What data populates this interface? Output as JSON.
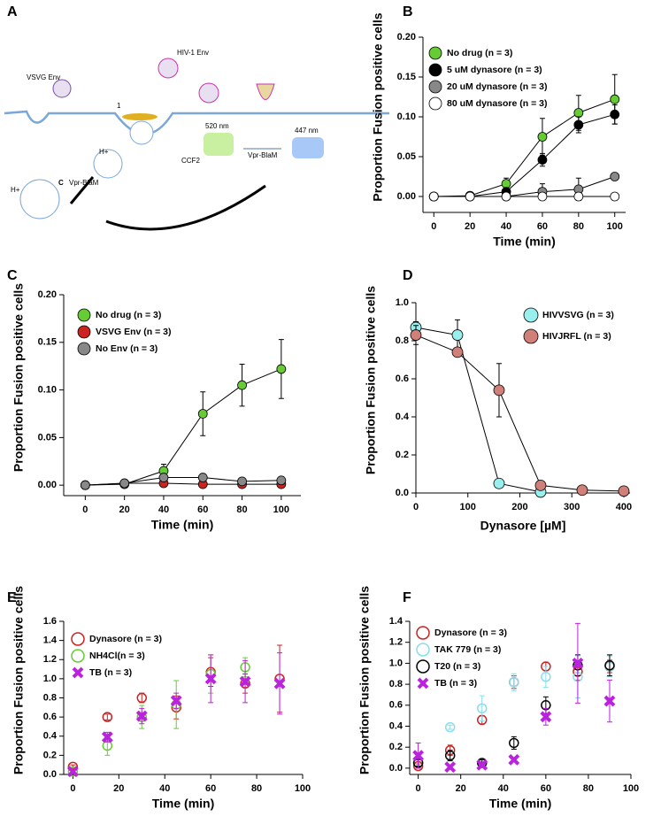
{
  "diagram": {
    "panel": "A",
    "vsvg": "VSVG Env",
    "hiv": "HIV-1 Env",
    "step": "1",
    "green": "520 nm",
    "blue": "447 nm",
    "ccf2": "CCF2",
    "blam1": "Vpr-BlaM",
    "h1": "H+",
    "h2": "H+",
    "c": "C",
    "blam2": "Vpr-BlaM"
  },
  "chart_data": [
    {
      "type": "line",
      "panel": "B",
      "xlabel": "Time (min)",
      "ylabel": "Proportion Fusion positive cells",
      "x": [
        0,
        20,
        40,
        60,
        80,
        100
      ],
      "xlim": [
        -6,
        106
      ],
      "xticks": [
        0,
        20,
        40,
        60,
        80,
        100
      ],
      "ylim": [
        -0.02,
        0.2
      ],
      "yticks": [
        {
          "value": 0,
          "label": "0.00"
        },
        0.05,
        {
          "value": 0.1,
          "label": "0.10"
        },
        0.15,
        {
          "value": 0.2,
          "label": "0.20"
        }
      ],
      "marker": "filled",
      "legend": "upper left",
      "series": [
        {
          "name": "No drug (n = 3)",
          "color": "#66cc33",
          "values": [
            0,
            0.001,
            0.016,
            0.075,
            0.105,
            0.122
          ],
          "errors": [
            0,
            0.001,
            0.007,
            0.023,
            0.022,
            0.031
          ]
        },
        {
          "name": "5 uM dynasore (n = 3)",
          "color": "#000000",
          "values": [
            0,
            0,
            0.006,
            0.046,
            0.09,
            0.103
          ],
          "errors": [
            0,
            0,
            0.004,
            0.008,
            0.01,
            0.012
          ]
        },
        {
          "name": "20 uM dynasore (n = 3)",
          "color": "#888888",
          "values": [
            0,
            0,
            0,
            0.006,
            0.009,
            0.025
          ],
          "errors": [
            0,
            0,
            0.002,
            0.01,
            0.014,
            0.003
          ]
        },
        {
          "name": "80 uM dynasore (n = 3)",
          "color": "#ffffff",
          "values": [
            0,
            0,
            0,
            0,
            0,
            0
          ],
          "errors": [
            0,
            0,
            0,
            0,
            0,
            0
          ]
        }
      ]
    },
    {
      "type": "line",
      "panel": "C",
      "xlabel": "Time (min)",
      "ylabel": "Proportion Fusion positive cells",
      "x": [
        0,
        20,
        40,
        60,
        80,
        100
      ],
      "xlim": [
        -11,
        110
      ],
      "xticks": [
        0,
        20,
        40,
        60,
        80,
        100
      ],
      "ylim": [
        -0.011,
        0.2
      ],
      "yticks": [
        {
          "value": 0,
          "label": "0.00"
        },
        0.05,
        {
          "value": 0.1,
          "label": "0.10"
        },
        0.15,
        {
          "value": 0.2,
          "label": "0.20"
        }
      ],
      "marker": "filled",
      "legend": "upper left",
      "series": [
        {
          "name": "No drug (n = 3)",
          "color": "#66cc33",
          "values": [
            0,
            0.001,
            0.015,
            0.075,
            0.105,
            0.122
          ],
          "errors": [
            0,
            0.001,
            0.007,
            0.023,
            0.022,
            0.031
          ]
        },
        {
          "name": "VSVG Env (n = 3)",
          "color": "#cc2222",
          "values": [
            0,
            0.002,
            0.002,
            0.001,
            0.001,
            0.001
          ],
          "errors": [
            0,
            0.001,
            0.001,
            0.001,
            0.001,
            0.001
          ]
        },
        {
          "name": "No Env (n = 3)",
          "color": "#888888",
          "values": [
            0,
            0.002,
            0.008,
            0.008,
            0.004,
            0.005
          ],
          "errors": [
            0,
            0.001,
            0.003,
            0.002,
            0.002,
            0.002
          ]
        }
      ]
    },
    {
      "type": "line",
      "panel": "D",
      "xlabel": "Dynasore [µM]",
      "ylabel": "Proportion Fusion positive cells",
      "x": [
        0,
        80,
        160,
        240,
        320,
        400
      ],
      "xlim": [
        0,
        412
      ],
      "xticks": [
        0,
        100,
        200,
        300,
        400
      ],
      "ylim": [
        0,
        1
      ],
      "yticks": [
        {
          "value": 0,
          "label": "0.0"
        },
        0.2,
        0.4,
        0.6,
        0.8,
        {
          "value": 1,
          "label": "1.0"
        }
      ],
      "marker": "filled",
      "legend": "upper right",
      "series": [
        {
          "name": "HIVVSVG (n = 3)",
          "color": "#99eeee",
          "values": [
            0.87,
            0.83,
            0.05,
            0.005,
            null,
            null
          ],
          "errors": [
            0.03,
            0.08,
            0.01,
            0.01,
            null,
            null
          ]
        },
        {
          "name": "HIVJRFL (n = 3)",
          "color": "#d08078",
          "values": [
            0.83,
            0.74,
            0.54,
            0.04,
            0.015,
            0.01
          ],
          "errors": [
            0.05,
            0.02,
            0.14,
            0.02,
            0.01,
            0.01
          ]
        }
      ]
    },
    {
      "type": "scatter",
      "panel": "E",
      "xlabel": "Time (min)",
      "ylabel": "Proportion Fusion positive cells",
      "x": [
        0,
        15,
        30,
        45,
        60,
        75,
        90
      ],
      "xlim": [
        -4,
        100
      ],
      "xticks": [
        0,
        20,
        40,
        60,
        80,
        100
      ],
      "ylim": [
        0,
        1.6
      ],
      "yticks": [
        {
          "value": 0,
          "label": "0.0"
        },
        0.2,
        0.4,
        0.6,
        0.8,
        {
          "value": 1,
          "label": "1.0"
        },
        1.2,
        1.4,
        1.6
      ],
      "legend": "upper left",
      "series": [
        {
          "name": "Dynasore (n = 3)",
          "color": "#cc2222",
          "marker": "open",
          "values": [
            0.08,
            0.6,
            0.8,
            0.7,
            1.07,
            0.95,
            1.0
          ],
          "errors": [
            0.02,
            0.03,
            0.05,
            0.12,
            0.15,
            0.1,
            0.35
          ]
        },
        {
          "name": "NH4Cl(n = 3)",
          "color": "#66cc33",
          "marker": "open",
          "values": [
            0.03,
            0.3,
            0.6,
            0.73,
            1.05,
            1.12,
            null
          ],
          "errors": [
            0.02,
            0.1,
            0.12,
            0.25,
            0.2,
            0.1,
            null
          ]
        },
        {
          "name": "TB (n = 3)",
          "color": "#bb22dd",
          "marker": "x",
          "values": [
            0.03,
            0.39,
            0.61,
            0.77,
            1.0,
            0.97,
            0.95
          ],
          "errors": [
            0.02,
            0.05,
            0.08,
            0.08,
            0.25,
            0.22,
            0.32
          ]
        }
      ]
    },
    {
      "type": "scatter",
      "panel": "F",
      "xlabel": "Time (min)",
      "ylabel": "Proportion Fusion positive cells",
      "x": [
        0,
        15,
        30,
        45,
        60,
        75,
        90
      ],
      "xlim": [
        -4,
        100
      ],
      "xticks": [
        0,
        20,
        40,
        60,
        80,
        100
      ],
      "ylim": [
        -0.06,
        1.4
      ],
      "yticks": [
        {
          "value": 0,
          "label": "0.0"
        },
        0.2,
        0.4,
        0.6,
        0.8,
        {
          "value": 1,
          "label": "1.0"
        },
        1.2,
        1.4
      ],
      "legend": "upper left",
      "series": [
        {
          "name": "Dynasore (n = 3)",
          "color": "#cc2222",
          "marker": "open",
          "values": [
            0.02,
            0.17,
            0.46,
            0.82,
            0.97,
            0.92,
            0.97
          ],
          "errors": [
            0.02,
            0.05,
            0.04,
            0.06,
            0.04,
            0.08,
            0.06
          ]
        },
        {
          "name": "TAK 779 (n = 3)",
          "color": "#88ddee",
          "marker": "open",
          "values": [
            0.05,
            0.39,
            0.57,
            0.82,
            0.87,
            0.87,
            0.97
          ],
          "errors": [
            0.04,
            0.02,
            0.12,
            0.08,
            0.1,
            0.2,
            0.1
          ]
        },
        {
          "name": "T20 (n = 3)",
          "color": "#000000",
          "marker": "open",
          "values": [
            0.05,
            0.12,
            0.05,
            0.24,
            0.6,
            0.98,
            0.98
          ],
          "errors": [
            0.03,
            0.05,
            0.03,
            0.06,
            0.08,
            0.1,
            0.1
          ]
        },
        {
          "name": "TB (n = 3)",
          "color": "#bb22dd",
          "marker": "x",
          "values": [
            0.12,
            0.01,
            0.03,
            0.08,
            0.49,
            1.0,
            0.64
          ],
          "errors": [
            0.12,
            0.02,
            0.02,
            0.02,
            0.08,
            0.38,
            0.2
          ]
        }
      ]
    }
  ]
}
